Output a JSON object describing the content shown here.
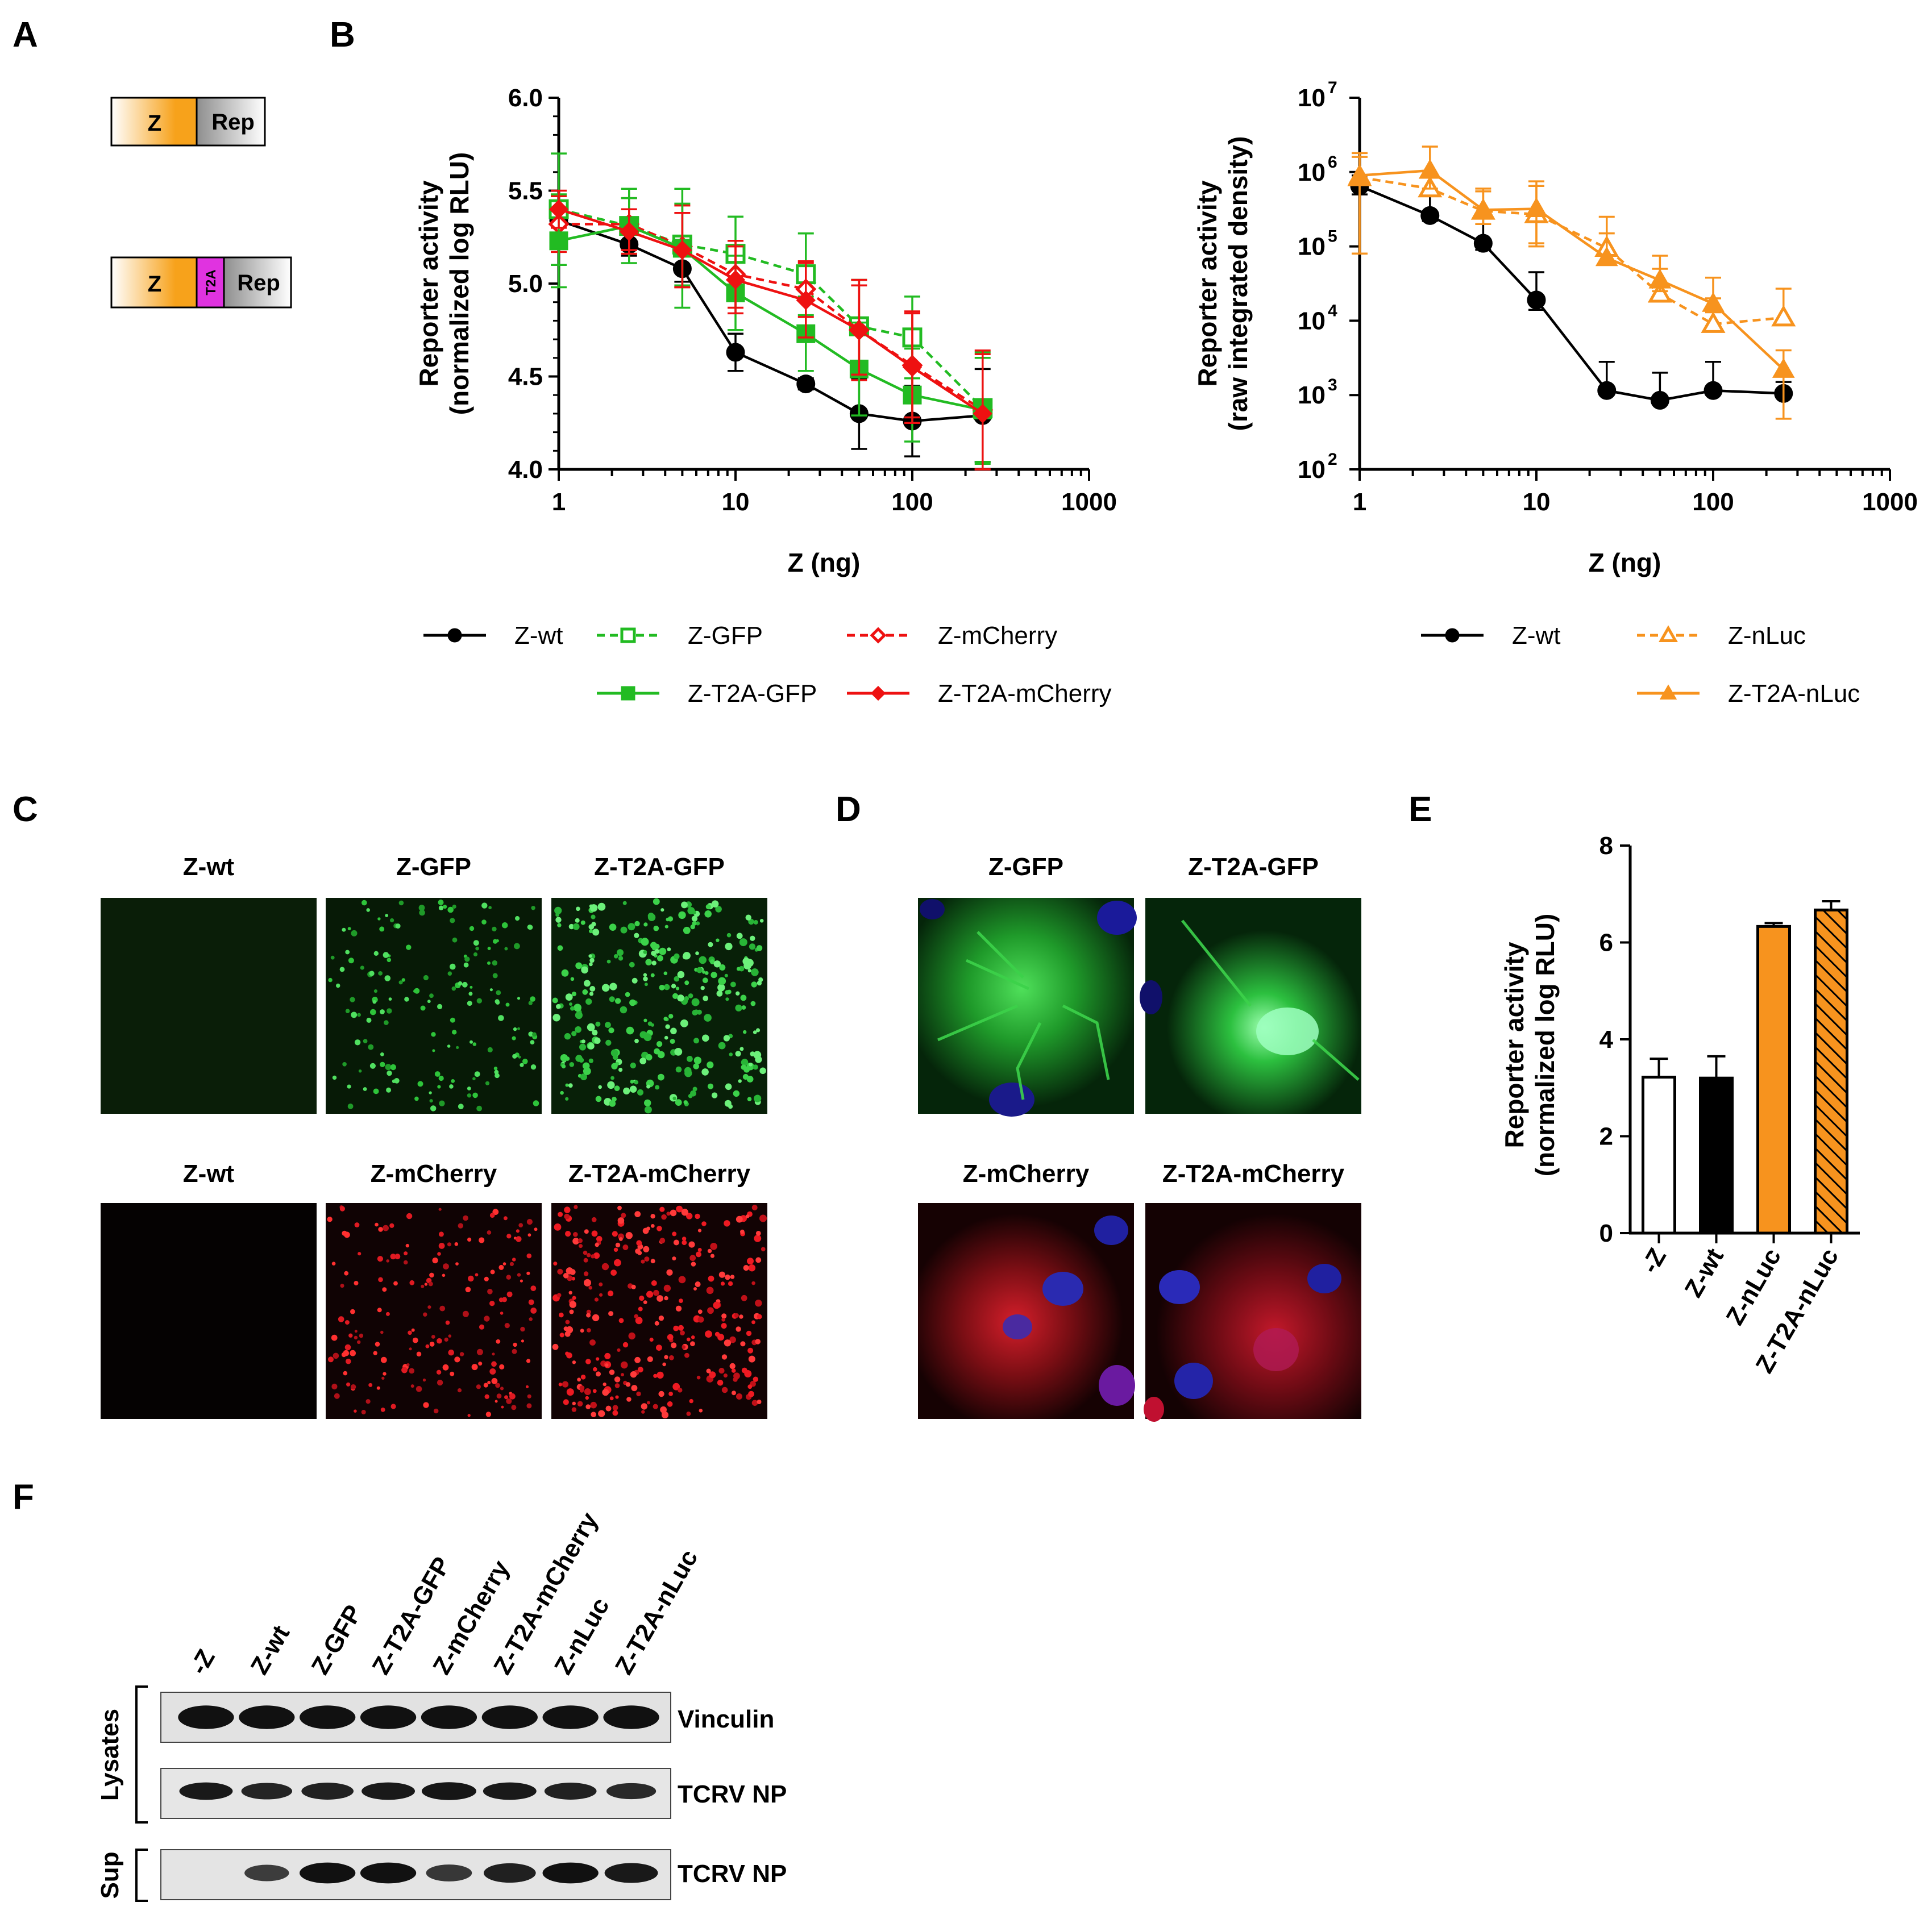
{
  "panels": {
    "A": {
      "letter": "A",
      "construct1": [
        "Z",
        "Rep"
      ],
      "construct2": [
        "Z",
        "T2A",
        "Rep"
      ],
      "colors": {
        "z": "#f7a21b",
        "rep": "#a9a9a9",
        "t2a": "#e033e0"
      }
    },
    "B": {
      "letter": "B"
    },
    "C": {
      "letter": "C",
      "row1": [
        "Z-wt",
        "Z-GFP",
        "Z-T2A-GFP"
      ],
      "row2": [
        "Z-wt",
        "Z-mCherry",
        "Z-T2A-mCherry"
      ]
    },
    "D": {
      "letter": "D",
      "row1": [
        "Z-GFP",
        "Z-T2A-GFP"
      ],
      "row2": [
        "Z-mCherry",
        "Z-T2A-mCherry"
      ]
    },
    "E": {
      "letter": "E"
    },
    "F": {
      "letter": "F",
      "lanes": [
        "-Z",
        "Z-wt",
        "Z-GFP",
        "Z-T2A-GFP",
        "Z-mCherry",
        "Z-T2A-mCherry",
        "Z-nLuc",
        "Z-T2A-nLuc"
      ],
      "bands": [
        "Vinculin",
        "TCRV NP",
        "TCRV NP"
      ],
      "groups": [
        "Lysates",
        "Sup"
      ],
      "band_intensity": {
        "vinculin": [
          1,
          1,
          1,
          1,
          1,
          1,
          1,
          1
        ],
        "lysate_np": [
          0.9,
          0.8,
          0.85,
          0.9,
          0.95,
          0.9,
          0.85,
          0.75
        ],
        "sup_np": [
          0,
          0.55,
          1,
          1,
          0.6,
          0.85,
          1,
          0.9
        ]
      }
    }
  },
  "chart_data": [
    {
      "type": "line",
      "panel": "B-left",
      "xlabel": "Z (ng)",
      "ylabel": [
        "Reporter activity",
        "(normalized log RLU)"
      ],
      "xscale": "log",
      "xlim": [
        1,
        1000
      ],
      "ylim": [
        4.0,
        6.0
      ],
      "xticks": [
        "1",
        "10",
        "100",
        "1000"
      ],
      "yticks": [
        "4.0",
        "4.5",
        "5.0",
        "5.5",
        "6.0"
      ],
      "x": [
        1,
        2.5,
        5,
        10,
        25,
        50,
        100,
        250
      ],
      "series": [
        {
          "name": "Z-wt",
          "color": "#000000",
          "marker": "circle-filled",
          "dash": false,
          "values": [
            5.34,
            5.21,
            5.08,
            4.63,
            4.46,
            4.3,
            4.26,
            4.29
          ],
          "errors": [
            0.08,
            0.06,
            0.07,
            0.1,
            0.03,
            0.19,
            0.19,
            0.25
          ]
        },
        {
          "name": "Z-GFP",
          "color": "#22bb22",
          "marker": "square-open",
          "dash": true,
          "values": [
            5.4,
            5.31,
            5.21,
            5.16,
            5.05,
            4.77,
            4.71,
            4.33
          ],
          "errors": [
            0.3,
            0.2,
            0.22,
            0.2,
            0.22,
            0.25,
            0.22,
            0.3
          ]
        },
        {
          "name": "Z-mCherry",
          "color": "#ee1111",
          "marker": "diamond-open",
          "dash": true,
          "values": [
            5.32,
            5.32,
            5.2,
            5.05,
            4.97,
            4.75,
            4.56,
            4.32
          ],
          "errors": [
            0.15,
            0.14,
            0.22,
            0.18,
            0.15,
            0.27,
            0.28,
            0.32
          ]
        },
        {
          "name": "Z-T2A-GFP",
          "color": "#22bb22",
          "marker": "square-filled",
          "dash": false,
          "values": [
            5.23,
            5.31,
            5.19,
            4.95,
            4.73,
            4.54,
            4.4,
            4.32
          ],
          "errors": [
            0.25,
            0.15,
            0.32,
            0.2,
            0.2,
            0.25,
            0.25,
            0.28
          ]
        },
        {
          "name": "Z-T2A-mCherry",
          "color": "#ee1111",
          "marker": "diamond-filled",
          "dash": false,
          "values": [
            5.4,
            5.28,
            5.18,
            5.02,
            4.91,
            4.75,
            4.55,
            4.3
          ],
          "errors": [
            0.1,
            0.12,
            0.2,
            0.18,
            0.2,
            0.24,
            0.3,
            0.32
          ]
        }
      ],
      "legend": {
        "row1": [
          "Z-wt",
          "Z-GFP",
          "Z-mCherry"
        ],
        "row2": [
          "Z-T2A-GFP",
          "Z-T2A-mCherry"
        ]
      }
    },
    {
      "type": "line",
      "panel": "B-right",
      "xlabel": "Z (ng)",
      "ylabel": [
        "Reporter activity",
        "(raw integrated density)"
      ],
      "xscale": "log",
      "yscale": "log",
      "xlim": [
        1,
        1000
      ],
      "ylim": [
        100,
        10000000
      ],
      "xticks": [
        "1",
        "10",
        "100",
        "1000"
      ],
      "yticks_exp": [
        "2",
        "3",
        "4",
        "5",
        "6",
        "7"
      ],
      "x": [
        1,
        2.5,
        5,
        10,
        25,
        50,
        100,
        250
      ],
      "series": [
        {
          "name": "Z-wt",
          "color": "#000000",
          "marker": "circle-filled",
          "dash": false,
          "values": [
            650000,
            260000,
            110000,
            19000,
            1150,
            850,
            1150,
            1050
          ],
          "err_hi": [
            900000,
            480000,
            250000,
            45000,
            2800,
            2000,
            2800,
            1500
          ],
          "err_lo": [
            500000,
            220000,
            90000,
            14000,
            1100,
            820,
            1100,
            1000
          ]
        },
        {
          "name": "Z-nLuc",
          "color": "#f7931e",
          "marker": "triangle-open",
          "dash": true,
          "values": [
            850000,
            600000,
            300000,
            270000,
            95000,
            23000,
            9000,
            11000
          ],
          "err_hi": [
            1600000,
            900000,
            550000,
            650000,
            150000,
            50000,
            20000,
            27000
          ],
          "err_lo": [
            80000,
            500000,
            200000,
            110000,
            80000,
            20000,
            7500,
            9000
          ]
        },
        {
          "name": "Z-T2A-nLuc",
          "color": "#f7931e",
          "marker": "triangle-filled",
          "dash": false,
          "values": [
            900000,
            1050000,
            310000,
            320000,
            70000,
            35000,
            17000,
            2200
          ],
          "err_hi": [
            1800000,
            2200000,
            600000,
            750000,
            250000,
            75000,
            38000,
            4000
          ],
          "err_lo": [
            80000,
            600000,
            250000,
            100000,
            60000,
            25000,
            13000,
            480
          ]
        }
      ],
      "legend": {
        "col1": [
          "Z-wt"
        ],
        "col2": [
          "Z-nLuc",
          "Z-T2A-nLuc"
        ]
      }
    },
    {
      "type": "bar",
      "panel": "E",
      "ylabel": [
        "Reporter activity",
        "(normalized log RLU)"
      ],
      "ylim": [
        0,
        8
      ],
      "yticks": [
        "0",
        "2",
        "4",
        "6",
        "8"
      ],
      "categories": [
        "-Z",
        "Z-wt",
        "Z-nLuc",
        "Z-T2A-nLuc"
      ],
      "values": [
        3.22,
        3.2,
        6.33,
        6.67
      ],
      "errors": [
        0.38,
        0.45,
        0.07,
        0.18
      ],
      "fills": [
        "#ffffff",
        "#000000",
        "#f7931e",
        "hatched-#f7931e"
      ]
    }
  ]
}
